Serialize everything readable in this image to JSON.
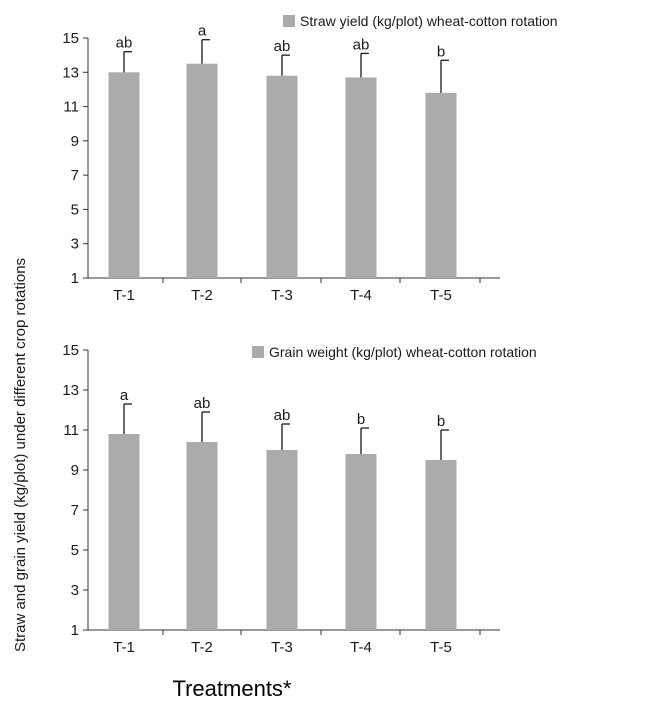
{
  "ylabel": "Straw and grain yield (kg/plot) under different crop rotations",
  "xlabel": "Treatments*",
  "colors": {
    "bar": "#ababab",
    "axis": "#333333",
    "error": "#1a1a1a"
  },
  "chart_data": [
    {
      "type": "bar",
      "categories": [
        "T-1",
        "T-2",
        "T-3",
        "T-4",
        "T-5"
      ],
      "series": [
        {
          "name": "Straw yield (kg/plot) wheat-cotton rotation",
          "values": [
            13.0,
            13.5,
            12.8,
            12.7,
            11.8
          ],
          "error_upper": [
            1.2,
            1.4,
            1.2,
            1.4,
            1.9
          ],
          "letters": [
            "ab",
            "a",
            "ab",
            "ab",
            "b"
          ]
        }
      ],
      "ylim": [
        1,
        15
      ],
      "yticks": [
        1,
        3,
        5,
        7,
        9,
        11,
        13,
        15
      ],
      "grid": false,
      "legend": "top-right"
    },
    {
      "type": "bar",
      "categories": [
        "T-1",
        "T-2",
        "T-3",
        "T-4",
        "T-5"
      ],
      "series": [
        {
          "name": "Grain weight (kg/plot) wheat-cotton rotation",
          "values": [
            10.8,
            10.4,
            10.0,
            9.8,
            9.5
          ],
          "error_upper": [
            1.5,
            1.5,
            1.3,
            1.3,
            1.5
          ],
          "letters": [
            "a",
            "ab",
            "ab",
            "b",
            "b"
          ]
        }
      ],
      "ylim": [
        1,
        15
      ],
      "yticks": [
        1,
        3,
        5,
        7,
        9,
        11,
        13,
        15
      ],
      "grid": false,
      "legend": "top-right"
    }
  ]
}
